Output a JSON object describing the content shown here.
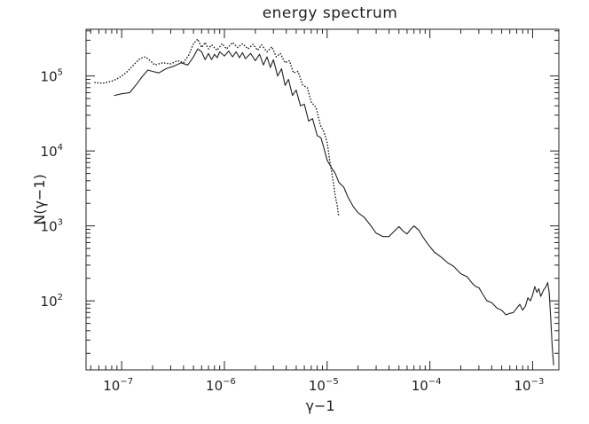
{
  "chart_data": {
    "type": "line",
    "title": "energy spectrum",
    "xlabel": "γ−1",
    "ylabel": "N(γ−1)",
    "xscale": "log",
    "yscale": "log",
    "xlim": [
      4.5e-08,
      0.0018
    ],
    "ylim": [
      12,
      420000.0
    ],
    "grid": false,
    "x_ticks": [
      {
        "base": "10",
        "exp": "−7",
        "value": 1e-07
      },
      {
        "base": "10",
        "exp": "−6",
        "value": 1e-06
      },
      {
        "base": "10",
        "exp": "−5",
        "value": 1e-05
      },
      {
        "base": "10",
        "exp": "−4",
        "value": 0.0001
      },
      {
        "base": "10",
        "exp": "−3",
        "value": 0.001
      }
    ],
    "y_ticks": [
      {
        "base": "10",
        "exp": "2",
        "value": 100
      },
      {
        "base": "10",
        "exp": "3",
        "value": 1000
      },
      {
        "base": "10",
        "exp": "4",
        "value": 10000
      },
      {
        "base": "10",
        "exp": "5",
        "value": 100000
      }
    ],
    "series": [
      {
        "style": "solid",
        "color": "#222222",
        "points": [
          [
            8.5e-08,
            55000
          ],
          [
            1e-07,
            58000
          ],
          [
            1.2e-07,
            60000
          ],
          [
            1.4e-07,
            78000
          ],
          [
            1.6e-07,
            100000
          ],
          [
            1.8e-07,
            120000
          ],
          [
            2e-07,
            115000
          ],
          [
            2.3e-07,
            110000
          ],
          [
            2.7e-07,
            125000
          ],
          [
            3.2e-07,
            135000
          ],
          [
            3.8e-07,
            150000
          ],
          [
            4.4e-07,
            140000
          ],
          [
            5e-07,
            180000
          ],
          [
            5.5e-07,
            230000
          ],
          [
            6e-07,
            210000
          ],
          [
            6.5e-07,
            165000
          ],
          [
            7e-07,
            200000
          ],
          [
            7.5e-07,
            165000
          ],
          [
            8e-07,
            195000
          ],
          [
            8.5e-07,
            175000
          ],
          [
            9e-07,
            210000
          ],
          [
            1e-06,
            185000
          ],
          [
            1.1e-06,
            215000
          ],
          [
            1.2e-06,
            180000
          ],
          [
            1.3e-06,
            210000
          ],
          [
            1.4e-06,
            175000
          ],
          [
            1.5e-06,
            205000
          ],
          [
            1.6e-06,
            170000
          ],
          [
            1.8e-06,
            200000
          ],
          [
            2e-06,
            160000
          ],
          [
            2.2e-06,
            195000
          ],
          [
            2.4e-06,
            140000
          ],
          [
            2.6e-06,
            180000
          ],
          [
            2.8e-06,
            130000
          ],
          [
            3e-06,
            165000
          ],
          [
            3.3e-06,
            100000
          ],
          [
            3.6e-06,
            125000
          ],
          [
            3.9e-06,
            75000
          ],
          [
            4.2e-06,
            90000
          ],
          [
            4.6e-06,
            55000
          ],
          [
            5e-06,
            65000
          ],
          [
            5.5e-06,
            40000
          ],
          [
            6e-06,
            42000
          ],
          [
            6.6e-06,
            25000
          ],
          [
            7.2e-06,
            27000
          ],
          [
            8e-06,
            16000
          ],
          [
            8.7e-06,
            15000
          ],
          [
            9.3e-06,
            11000
          ],
          [
            1e-05,
            7500
          ],
          [
            1.1e-05,
            6000
          ],
          [
            1.2e-05,
            5000
          ],
          [
            1.3e-05,
            3800
          ],
          [
            1.45e-05,
            3300
          ],
          [
            1.6e-05,
            2400
          ],
          [
            1.8e-05,
            1800
          ],
          [
            2e-05,
            1500
          ],
          [
            2.3e-05,
            1300
          ],
          [
            2.6e-05,
            1050
          ],
          [
            3e-05,
            800
          ],
          [
            3.5e-05,
            720
          ],
          [
            4e-05,
            720
          ],
          [
            4.5e-05,
            850
          ],
          [
            5e-05,
            980
          ],
          [
            5.5e-05,
            850
          ],
          [
            6e-05,
            780
          ],
          [
            6.5e-05,
            900
          ],
          [
            7e-05,
            1000
          ],
          [
            7.8e-05,
            880
          ],
          [
            8.5e-05,
            720
          ],
          [
            9.5e-05,
            580
          ],
          [
            0.00011,
            450
          ],
          [
            0.00013,
            380
          ],
          [
            0.00015,
            320
          ],
          [
            0.00017,
            290
          ],
          [
            0.0002,
            230
          ],
          [
            0.00023,
            210
          ],
          [
            0.00026,
            170
          ],
          [
            0.00028,
            155
          ],
          [
            0.0003,
            150
          ],
          [
            0.00033,
            120
          ],
          [
            0.00036,
            100
          ],
          [
            0.0004,
            95
          ],
          [
            0.00045,
            80
          ],
          [
            0.0005,
            75
          ],
          [
            0.00055,
            65
          ],
          [
            0.0006,
            68
          ],
          [
            0.00065,
            70
          ],
          [
            0.0007,
            80
          ],
          [
            0.00075,
            90
          ],
          [
            0.0008,
            75
          ],
          [
            0.00085,
            85
          ],
          [
            0.0009,
            110
          ],
          [
            0.00095,
            100
          ],
          [
            0.001,
            120
          ],
          [
            0.00105,
            155
          ],
          [
            0.0011,
            130
          ],
          [
            0.00115,
            145
          ],
          [
            0.0012,
            115
          ],
          [
            0.00128,
            140
          ],
          [
            0.00135,
            155
          ],
          [
            0.0014,
            175
          ],
          [
            0.00145,
            130
          ],
          [
            0.0015,
            60
          ],
          [
            0.00155,
            25
          ],
          [
            0.0016,
            14
          ]
        ]
      },
      {
        "style": "dotted",
        "color": "#222222",
        "points": [
          [
            5.5e-08,
            82000
          ],
          [
            6.5e-08,
            80000
          ],
          [
            8e-08,
            85000
          ],
          [
            9.5e-08,
            95000
          ],
          [
            1.1e-07,
            110000
          ],
          [
            1.3e-07,
            140000
          ],
          [
            1.5e-07,
            170000
          ],
          [
            1.7e-07,
            180000
          ],
          [
            1.9e-07,
            160000
          ],
          [
            2.1e-07,
            140000
          ],
          [
            2.5e-07,
            150000
          ],
          [
            3e-07,
            145000
          ],
          [
            3.5e-07,
            160000
          ],
          [
            4e-07,
            150000
          ],
          [
            4.5e-07,
            190000
          ],
          [
            5e-07,
            270000
          ],
          [
            5.5e-07,
            310000
          ],
          [
            6e-07,
            240000
          ],
          [
            6.5e-07,
            280000
          ],
          [
            7e-07,
            230000
          ],
          [
            7.5e-07,
            260000
          ],
          [
            8.5e-07,
            220000
          ],
          [
            9.5e-07,
            270000
          ],
          [
            1.05e-06,
            230000
          ],
          [
            1.2e-06,
            280000
          ],
          [
            1.35e-06,
            240000
          ],
          [
            1.5e-06,
            270000
          ],
          [
            1.7e-06,
            230000
          ],
          [
            1.9e-06,
            265000
          ],
          [
            2.1e-06,
            220000
          ],
          [
            2.3e-06,
            260000
          ],
          [
            2.6e-06,
            210000
          ],
          [
            2.9e-06,
            245000
          ],
          [
            3.2e-06,
            180000
          ],
          [
            3.5e-06,
            200000
          ],
          [
            3.9e-06,
            150000
          ],
          [
            4.3e-06,
            160000
          ],
          [
            4.7e-06,
            110000
          ],
          [
            5.2e-06,
            115000
          ],
          [
            5.8e-06,
            75000
          ],
          [
            6.4e-06,
            70000
          ],
          [
            7e-06,
            45000
          ],
          [
            7.8e-06,
            38000
          ],
          [
            8.6e-06,
            22000
          ],
          [
            9.3e-06,
            18000
          ],
          [
            1e-05,
            13000
          ],
          [
            1.05e-05,
            8000
          ],
          [
            1.1e-05,
            5500
          ],
          [
            1.15e-05,
            3800
          ],
          [
            1.2e-05,
            2500
          ],
          [
            1.25e-05,
            1900
          ],
          [
            1.3e-05,
            1300
          ]
        ]
      }
    ]
  }
}
